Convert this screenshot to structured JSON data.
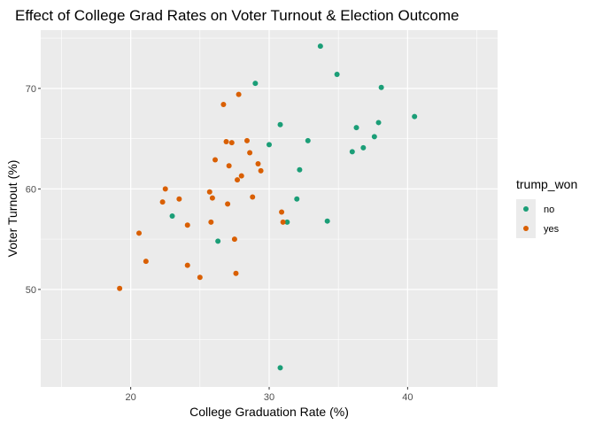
{
  "chart_data": {
    "type": "scatter",
    "title": "Effect of College Grad Rates on Voter Turnout & Election Outcome",
    "xlabel": "College Graduation Rate (%)",
    "ylabel": "Voter Turnout (%)",
    "xlim": [
      13.5,
      46.5
    ],
    "ylim": [
      40.3,
      75.8
    ],
    "x_ticks": [
      20,
      30,
      40
    ],
    "y_ticks": [
      50,
      60,
      70
    ],
    "x_minor": [
      15,
      25,
      35,
      45
    ],
    "y_minor": [
      45,
      55,
      65,
      75
    ],
    "grid": true,
    "legend": {
      "title": "trump_won",
      "placement": "right"
    },
    "colors": {
      "no": "#1b9e77",
      "yes": "#d95f02",
      "panel": "#ebebeb",
      "grid": "#ffffff"
    },
    "series": [
      {
        "name": "no",
        "points": [
          [
            33.7,
            74.2
          ],
          [
            29.0,
            70.5
          ],
          [
            34.9,
            71.4
          ],
          [
            38.1,
            70.1
          ],
          [
            40.5,
            67.2
          ],
          [
            37.9,
            66.6
          ],
          [
            36.3,
            66.1
          ],
          [
            30.8,
            66.4
          ],
          [
            37.6,
            65.2
          ],
          [
            36.8,
            64.1
          ],
          [
            36.0,
            63.7
          ],
          [
            30.0,
            64.4
          ],
          [
            32.8,
            64.8
          ],
          [
            32.2,
            61.9
          ],
          [
            32.0,
            59.0
          ],
          [
            23.0,
            57.3
          ],
          [
            34.2,
            56.8
          ],
          [
            31.3,
            56.7
          ],
          [
            26.3,
            54.8
          ],
          [
            30.8,
            42.2
          ]
        ]
      },
      {
        "name": "yes",
        "points": [
          [
            27.8,
            69.4
          ],
          [
            26.7,
            68.4
          ],
          [
            26.9,
            64.7
          ],
          [
            27.3,
            64.6
          ],
          [
            28.4,
            64.8
          ],
          [
            28.6,
            63.6
          ],
          [
            26.1,
            62.9
          ],
          [
            27.1,
            62.3
          ],
          [
            29.2,
            62.5
          ],
          [
            29.4,
            61.8
          ],
          [
            28.0,
            61.3
          ],
          [
            27.7,
            60.9
          ],
          [
            22.5,
            60.0
          ],
          [
            25.7,
            59.7
          ],
          [
            23.5,
            59.0
          ],
          [
            25.9,
            59.1
          ],
          [
            28.8,
            59.2
          ],
          [
            22.3,
            58.7
          ],
          [
            27.0,
            58.5
          ],
          [
            30.9,
            57.7
          ],
          [
            25.8,
            56.7
          ],
          [
            31.0,
            56.7
          ],
          [
            24.1,
            56.4
          ],
          [
            20.6,
            55.6
          ],
          [
            27.5,
            55.0
          ],
          [
            21.1,
            52.8
          ],
          [
            24.1,
            52.4
          ],
          [
            25.0,
            51.2
          ],
          [
            27.6,
            51.6
          ],
          [
            19.2,
            50.1
          ]
        ]
      }
    ]
  }
}
